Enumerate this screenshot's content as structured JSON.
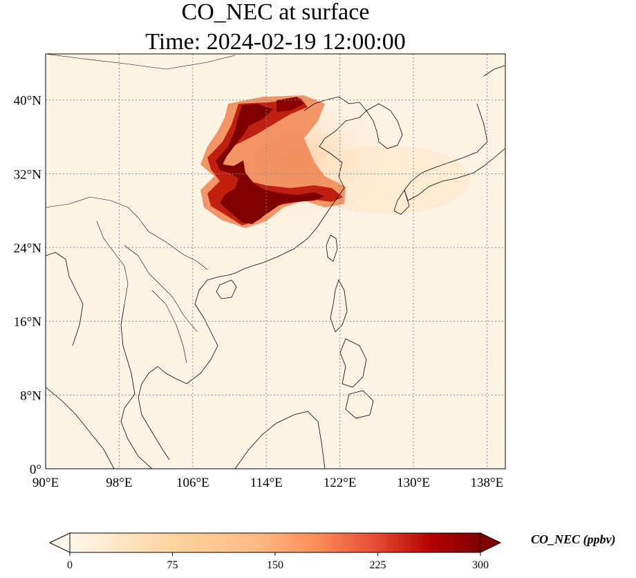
{
  "title": {
    "line1": "CO_NEC at surface",
    "line2": "Time: 2024-02-19 12:00:00"
  },
  "map": {
    "lon_ticks": [
      "90°E",
      "98°E",
      "106°E",
      "114°E",
      "122°E",
      "130°E",
      "138°E"
    ],
    "lat_ticks": [
      "0°",
      "8°N",
      "16°N",
      "24°N",
      "32°N",
      "40°N"
    ],
    "lon_range": [
      90,
      140
    ],
    "lat_range": [
      0,
      45
    ],
    "gridlines": "dotted",
    "colormap": "OrRd",
    "colors": {
      "low": "#fff7ec",
      "mid": "#fdbb84",
      "high": "#d7301f",
      "max": "#7f0000"
    }
  },
  "colorbar": {
    "label": "CO_NEC (ppbv)",
    "ticks": [
      "0",
      "75",
      "150",
      "225",
      "300"
    ],
    "range": [
      0,
      300
    ],
    "extend": "both"
  }
}
